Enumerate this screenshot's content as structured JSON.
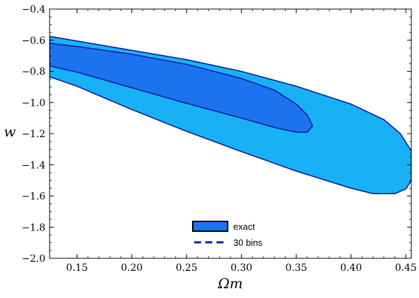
{
  "chart_data": {
    "type": "contour",
    "xlabel": "Ωm",
    "ylabel": "w",
    "xlim": [
      0.125,
      0.455
    ],
    "ylim": [
      -2.0,
      -0.4
    ],
    "x_ticks": [
      0.15,
      0.2,
      0.25,
      0.3,
      0.35,
      0.4,
      0.45
    ],
    "x_tick_labels": [
      "0.15",
      "0.20",
      "0.25",
      "0.30",
      "0.35",
      "0.40",
      "0.45"
    ],
    "y_ticks": [
      -0.4,
      -0.6,
      -0.8,
      -1.0,
      -1.2,
      -1.4,
      -1.6,
      -1.8,
      -2.0
    ],
    "y_tick_labels": [
      "−0.4",
      "−0.6",
      "−0.8",
      "−1.0",
      "−1.2",
      "−1.4",
      "−1.6",
      "−1.8",
      "−2.0"
    ],
    "regions": [
      {
        "level": "outer",
        "color": "#19b1f5",
        "points": [
          [
            0.125,
            -0.575
          ],
          [
            0.15,
            -0.605
          ],
          [
            0.2,
            -0.665
          ],
          [
            0.25,
            -0.725
          ],
          [
            0.3,
            -0.8
          ],
          [
            0.35,
            -0.895
          ],
          [
            0.4,
            -1.01
          ],
          [
            0.43,
            -1.11
          ],
          [
            0.445,
            -1.2
          ],
          [
            0.455,
            -1.31
          ],
          [
            0.455,
            -1.5
          ],
          [
            0.45,
            -1.555
          ],
          [
            0.44,
            -1.585
          ],
          [
            0.42,
            -1.585
          ],
          [
            0.4,
            -1.55
          ],
          [
            0.35,
            -1.44
          ],
          [
            0.3,
            -1.315
          ],
          [
            0.25,
            -1.185
          ],
          [
            0.2,
            -1.045
          ],
          [
            0.15,
            -0.895
          ],
          [
            0.125,
            -0.835
          ]
        ]
      },
      {
        "level": "inner",
        "color": "#1c73f0",
        "points": [
          [
            0.125,
            -0.62
          ],
          [
            0.15,
            -0.64
          ],
          [
            0.2,
            -0.69
          ],
          [
            0.25,
            -0.755
          ],
          [
            0.3,
            -0.845
          ],
          [
            0.33,
            -0.92
          ],
          [
            0.35,
            -1.01
          ],
          [
            0.36,
            -1.08
          ],
          [
            0.365,
            -1.15
          ],
          [
            0.36,
            -1.19
          ],
          [
            0.35,
            -1.19
          ],
          [
            0.33,
            -1.16
          ],
          [
            0.3,
            -1.1
          ],
          [
            0.25,
            -1.005
          ],
          [
            0.2,
            -0.905
          ],
          [
            0.15,
            -0.805
          ],
          [
            0.125,
            -0.765
          ]
        ]
      }
    ],
    "legend": {
      "position": "bottom-center",
      "entries": [
        {
          "label": "exact",
          "style": "filled-box"
        },
        {
          "label": "30 bins",
          "style": "dashed-line"
        }
      ]
    },
    "colors": {
      "outer_fill": "#19b1f5",
      "inner_fill": "#1c73f0",
      "contour_line": "#0a1fa0",
      "legend_box": "#1c73f0"
    },
    "grid": false
  }
}
